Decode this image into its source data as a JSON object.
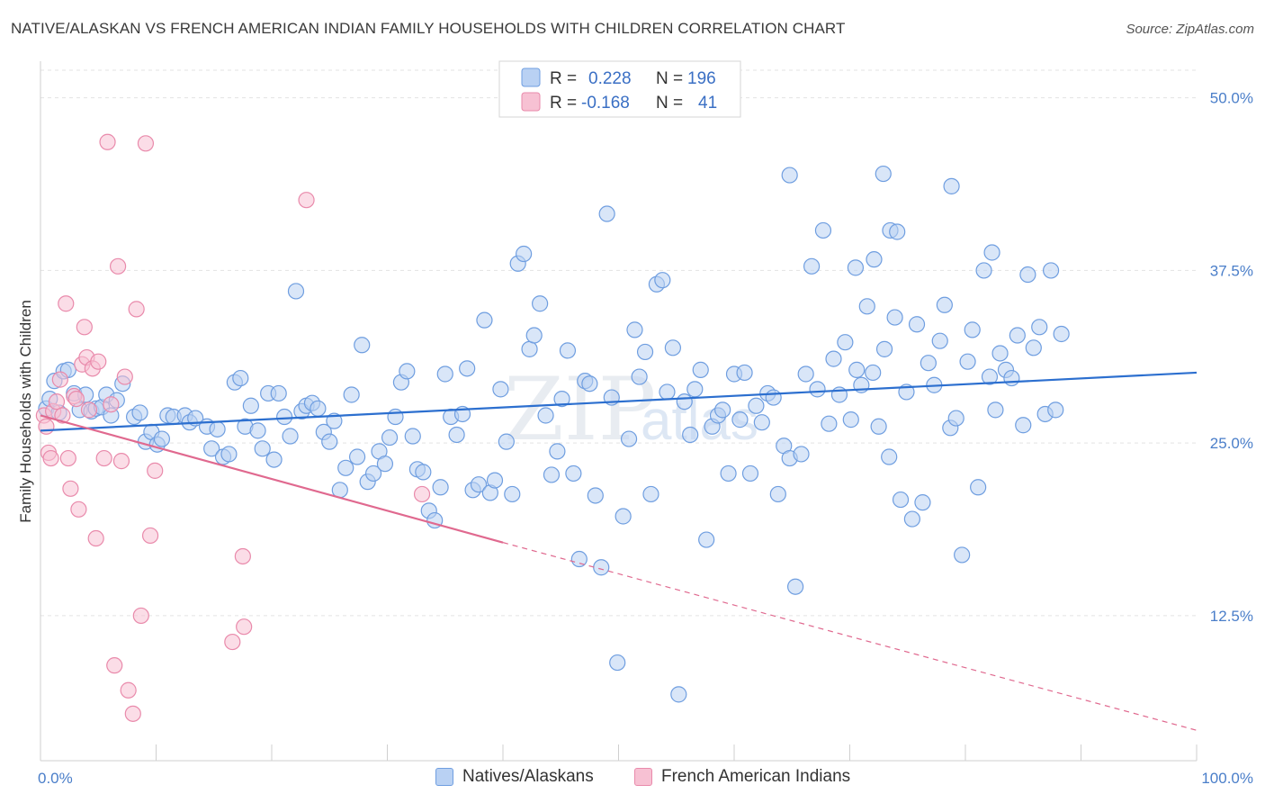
{
  "title": "NATIVE/ALASKAN VS FRENCH AMERICAN INDIAN FAMILY HOUSEHOLDS WITH CHILDREN CORRELATION CHART",
  "source": "Source: ZipAtlas.com",
  "colors": {
    "blue_fill": "#b9d1f3",
    "blue_stroke": "#6f9ee0",
    "blue_line": "#2c6fcf",
    "pink_fill": "#f7c1d3",
    "pink_stroke": "#e98aab",
    "pink_line": "#e0698f",
    "grid": "#e3e3e3",
    "axis_text": "#4a7ec9"
  },
  "legend": {
    "rows": [
      {
        "r_label": "R =",
        "r_value": "0.228",
        "n_label": "N =",
        "n_value": "196"
      },
      {
        "r_label": "R =",
        "r_value": "-0.168",
        "n_label": "N =",
        "n_value": "41"
      }
    ]
  },
  "bottom_legend": [
    "Natives/Alaskans",
    "French American Indians"
  ],
  "chart_data": {
    "type": "scatter",
    "title": "NATIVE/ALASKAN VS FRENCH AMERICAN INDIAN FAMILY HOUSEHOLDS WITH CHILDREN CORRELATION CHART",
    "xlabel": "",
    "ylabel": "Family Households with Children",
    "xlim": [
      0,
      100
    ],
    "ylim": [
      2,
      52
    ],
    "x_tick_labels": [
      "0.0%",
      "100.0%"
    ],
    "y_ticks": [
      12.5,
      25.0,
      37.5,
      50.0
    ],
    "y_tick_labels": [
      "12.5%",
      "25.0%",
      "37.5%",
      "50.0%"
    ],
    "grid": "horizontal dashed",
    "legend_placement": "top-center",
    "watermark": "ZIPatlas",
    "series": [
      {
        "name": "Natives/Alaskans",
        "r": 0.228,
        "n": 196,
        "trend": {
          "x": [
            0,
            100
          ],
          "y": [
            25.9,
            30.1
          ],
          "style": "solid"
        },
        "points": [
          [
            0.5,
            27.5
          ],
          [
            0.8,
            28.2
          ],
          [
            1.2,
            29.5
          ],
          [
            1.6,
            27.2
          ],
          [
            2.0,
            30.2
          ],
          [
            2.4,
            30.3
          ],
          [
            2.9,
            28.6
          ],
          [
            3.4,
            27.4
          ],
          [
            3.9,
            28.5
          ],
          [
            4.4,
            27.3
          ],
          [
            4.8,
            27.5
          ],
          [
            5.3,
            27.6
          ],
          [
            5.7,
            28.5
          ],
          [
            6.1,
            27.0
          ],
          [
            6.6,
            28.1
          ],
          [
            7.1,
            29.3
          ],
          [
            8.1,
            26.9
          ],
          [
            8.6,
            27.2
          ],
          [
            9.1,
            25.1
          ],
          [
            9.6,
            25.8
          ],
          [
            10.1,
            24.9
          ],
          [
            10.5,
            25.3
          ],
          [
            11.0,
            27.0
          ],
          [
            11.5,
            26.9
          ],
          [
            12.5,
            27.0
          ],
          [
            12.9,
            26.5
          ],
          [
            13.4,
            26.8
          ],
          [
            14.4,
            26.2
          ],
          [
            14.8,
            24.6
          ],
          [
            15.3,
            26.0
          ],
          [
            15.8,
            24.0
          ],
          [
            16.3,
            24.2
          ],
          [
            16.8,
            29.4
          ],
          [
            17.3,
            29.7
          ],
          [
            17.7,
            26.2
          ],
          [
            18.2,
            27.7
          ],
          [
            18.8,
            25.9
          ],
          [
            19.2,
            24.6
          ],
          [
            19.7,
            28.6
          ],
          [
            20.2,
            23.8
          ],
          [
            20.6,
            28.6
          ],
          [
            21.1,
            26.9
          ],
          [
            21.6,
            25.5
          ],
          [
            22.1,
            36.0
          ],
          [
            22.6,
            27.3
          ],
          [
            23.0,
            27.7
          ],
          [
            23.5,
            27.9
          ],
          [
            24.0,
            27.5
          ],
          [
            24.5,
            25.8
          ],
          [
            25.0,
            25.1
          ],
          [
            25.4,
            26.6
          ],
          [
            25.9,
            21.6
          ],
          [
            26.4,
            23.2
          ],
          [
            26.9,
            28.5
          ],
          [
            27.4,
            24.0
          ],
          [
            27.8,
            32.1
          ],
          [
            28.3,
            22.2
          ],
          [
            28.8,
            22.8
          ],
          [
            29.3,
            24.4
          ],
          [
            29.8,
            23.5
          ],
          [
            30.2,
            25.4
          ],
          [
            30.7,
            26.9
          ],
          [
            31.2,
            29.4
          ],
          [
            31.7,
            30.2
          ],
          [
            32.2,
            25.5
          ],
          [
            32.6,
            23.1
          ],
          [
            33.1,
            22.9
          ],
          [
            33.6,
            20.1
          ],
          [
            34.1,
            19.4
          ],
          [
            34.6,
            21.8
          ],
          [
            35.0,
            30.0
          ],
          [
            35.5,
            26.9
          ],
          [
            36.0,
            25.6
          ],
          [
            36.5,
            27.1
          ],
          [
            36.9,
            30.4
          ],
          [
            37.4,
            21.6
          ],
          [
            37.9,
            22.0
          ],
          [
            38.4,
            33.9
          ],
          [
            38.9,
            21.4
          ],
          [
            39.3,
            22.3
          ],
          [
            39.8,
            28.9
          ],
          [
            40.3,
            25.1
          ],
          [
            40.8,
            21.3
          ],
          [
            41.3,
            38.0
          ],
          [
            41.8,
            38.7
          ],
          [
            42.3,
            31.8
          ],
          [
            42.7,
            32.8
          ],
          [
            43.2,
            35.1
          ],
          [
            43.7,
            27.0
          ],
          [
            44.2,
            22.7
          ],
          [
            44.7,
            24.4
          ],
          [
            45.1,
            28.2
          ],
          [
            45.6,
            31.7
          ],
          [
            46.1,
            22.8
          ],
          [
            46.6,
            16.6
          ],
          [
            47.1,
            29.5
          ],
          [
            47.5,
            29.3
          ],
          [
            48.0,
            21.2
          ],
          [
            48.5,
            16.0
          ],
          [
            49.0,
            41.6
          ],
          [
            49.4,
            28.3
          ],
          [
            49.9,
            9.1
          ],
          [
            50.4,
            19.7
          ],
          [
            50.9,
            25.3
          ],
          [
            51.4,
            33.2
          ],
          [
            51.8,
            29.8
          ],
          [
            52.3,
            31.6
          ],
          [
            52.8,
            21.3
          ],
          [
            53.3,
            36.5
          ],
          [
            53.8,
            36.8
          ],
          [
            54.2,
            28.7
          ],
          [
            54.7,
            31.9
          ],
          [
            55.2,
            6.8
          ],
          [
            55.7,
            28.0
          ],
          [
            56.2,
            25.6
          ],
          [
            56.6,
            28.9
          ],
          [
            57.1,
            30.3
          ],
          [
            57.6,
            18.0
          ],
          [
            58.1,
            26.2
          ],
          [
            58.6,
            27.0
          ],
          [
            59.0,
            27.4
          ],
          [
            59.5,
            22.8
          ],
          [
            60.0,
            30.0
          ],
          [
            60.5,
            26.7
          ],
          [
            60.9,
            30.1
          ],
          [
            61.4,
            22.8
          ],
          [
            61.9,
            27.7
          ],
          [
            62.4,
            26.5
          ],
          [
            62.9,
            28.6
          ],
          [
            63.4,
            28.3
          ],
          [
            63.8,
            21.3
          ],
          [
            64.3,
            24.8
          ],
          [
            64.8,
            23.9
          ],
          [
            65.3,
            14.6
          ],
          [
            65.8,
            24.2
          ],
          [
            66.2,
            30.0
          ],
          [
            66.7,
            37.8
          ],
          [
            67.2,
            28.9
          ],
          [
            67.7,
            40.4
          ],
          [
            68.2,
            26.4
          ],
          [
            68.6,
            31.1
          ],
          [
            69.1,
            28.5
          ],
          [
            69.6,
            32.3
          ],
          [
            70.1,
            26.7
          ],
          [
            70.6,
            30.3
          ],
          [
            71.0,
            29.2
          ],
          [
            71.5,
            34.9
          ],
          [
            72.0,
            30.1
          ],
          [
            72.5,
            26.2
          ],
          [
            73.0,
            31.8
          ],
          [
            73.4,
            24.0
          ],
          [
            73.9,
            34.1
          ],
          [
            74.4,
            20.9
          ],
          [
            74.9,
            28.7
          ],
          [
            75.4,
            19.5
          ],
          [
            75.8,
            33.6
          ],
          [
            76.3,
            20.7
          ],
          [
            76.8,
            30.8
          ],
          [
            77.3,
            29.2
          ],
          [
            77.8,
            32.4
          ],
          [
            78.2,
            35.0
          ],
          [
            78.7,
            26.1
          ],
          [
            79.2,
            26.8
          ],
          [
            79.7,
            16.9
          ],
          [
            80.2,
            30.9
          ],
          [
            80.6,
            33.2
          ],
          [
            81.1,
            21.8
          ],
          [
            81.6,
            37.5
          ],
          [
            82.1,
            29.8
          ],
          [
            82.6,
            27.4
          ],
          [
            83.0,
            31.5
          ],
          [
            83.5,
            30.3
          ],
          [
            84.0,
            29.7
          ],
          [
            84.5,
            32.8
          ],
          [
            85.0,
            26.3
          ],
          [
            85.4,
            37.2
          ],
          [
            85.9,
            31.9
          ],
          [
            86.4,
            33.4
          ],
          [
            86.9,
            27.1
          ],
          [
            87.4,
            37.5
          ],
          [
            87.8,
            27.4
          ],
          [
            88.3,
            32.9
          ],
          [
            72.9,
            44.5
          ],
          [
            78.8,
            43.6
          ],
          [
            64.8,
            44.4
          ],
          [
            73.5,
            40.4
          ],
          [
            74.1,
            40.3
          ],
          [
            82.3,
            38.8
          ],
          [
            72.1,
            38.3
          ],
          [
            70.5,
            37.7
          ]
        ]
      },
      {
        "name": "French American Indians",
        "r": -0.168,
        "n": 41,
        "trend": {
          "x": [
            0,
            40
          ],
          "y": [
            27.0,
            17.8
          ],
          "style": "solid",
          "extended": {
            "x": [
              40,
              100
            ],
            "y": [
              17.8,
              4.2
            ],
            "style": "dashed"
          }
        },
        "points": [
          [
            0.3,
            27.0
          ],
          [
            0.5,
            26.2
          ],
          [
            0.7,
            24.3
          ],
          [
            0.9,
            23.9
          ],
          [
            1.1,
            27.3
          ],
          [
            1.4,
            28.0
          ],
          [
            1.7,
            29.6
          ],
          [
            1.9,
            27.0
          ],
          [
            2.2,
            35.1
          ],
          [
            2.4,
            23.9
          ],
          [
            2.6,
            21.7
          ],
          [
            2.9,
            28.4
          ],
          [
            3.1,
            28.2
          ],
          [
            3.3,
            20.2
          ],
          [
            3.6,
            30.7
          ],
          [
            3.8,
            33.4
          ],
          [
            4.0,
            31.2
          ],
          [
            4.2,
            27.4
          ],
          [
            4.5,
            30.4
          ],
          [
            4.8,
            18.1
          ],
          [
            5.0,
            30.9
          ],
          [
            5.5,
            23.9
          ],
          [
            5.8,
            46.8
          ],
          [
            6.1,
            27.8
          ],
          [
            6.4,
            8.9
          ],
          [
            6.7,
            37.8
          ],
          [
            7.0,
            23.7
          ],
          [
            7.3,
            29.8
          ],
          [
            7.6,
            7.1
          ],
          [
            8.0,
            5.4
          ],
          [
            8.3,
            34.7
          ],
          [
            8.7,
            12.5
          ],
          [
            9.1,
            46.7
          ],
          [
            9.5,
            18.3
          ],
          [
            9.9,
            23.0
          ],
          [
            16.6,
            10.6
          ],
          [
            17.5,
            16.8
          ],
          [
            17.6,
            11.7
          ],
          [
            23.0,
            42.6
          ],
          [
            33.0,
            21.3
          ]
        ]
      }
    ]
  }
}
